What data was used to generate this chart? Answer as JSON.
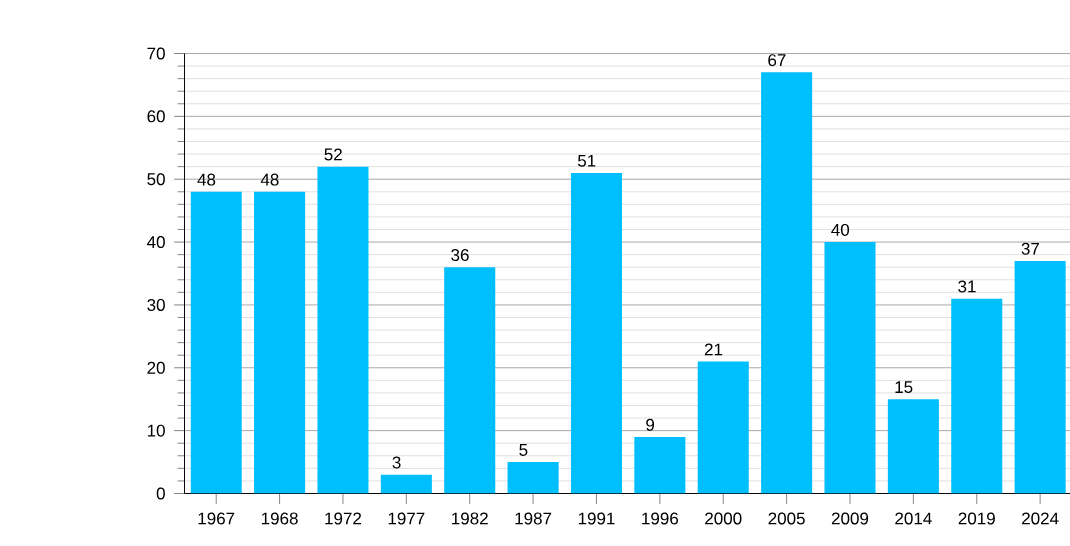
{
  "chart_data": {
    "type": "bar",
    "categories": [
      "1967",
      "1968",
      "1972",
      "1977",
      "1982",
      "1987",
      "1991",
      "1996",
      "2000",
      "2005",
      "2009",
      "2014",
      "2019",
      "2024"
    ],
    "values": [
      48,
      48,
      52,
      3,
      36,
      5,
      51,
      9,
      21,
      67,
      40,
      15,
      31,
      37
    ],
    "color": "#00bfff",
    "ylim": [
      0,
      70
    ],
    "yticks": [
      0,
      10,
      20,
      30,
      40,
      50,
      60,
      70
    ],
    "grid": "y",
    "data_labels": true
  }
}
